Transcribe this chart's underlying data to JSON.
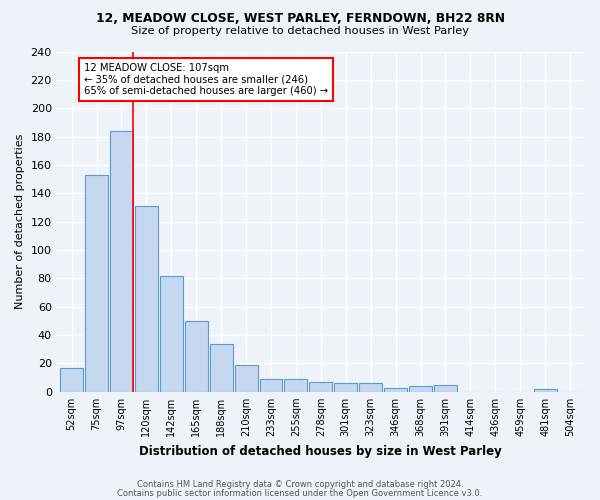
{
  "title1": "12, MEADOW CLOSE, WEST PARLEY, FERNDOWN, BH22 8RN",
  "title2": "Size of property relative to detached houses in West Parley",
  "xlabel": "Distribution of detached houses by size in West Parley",
  "ylabel": "Number of detached properties",
  "categories": [
    "52sqm",
    "75sqm",
    "97sqm",
    "120sqm",
    "142sqm",
    "165sqm",
    "188sqm",
    "210sqm",
    "233sqm",
    "255sqm",
    "278sqm",
    "301sqm",
    "323sqm",
    "346sqm",
    "368sqm",
    "391sqm",
    "414sqm",
    "436sqm",
    "459sqm",
    "481sqm",
    "504sqm"
  ],
  "values": [
    17,
    153,
    184,
    131,
    82,
    50,
    34,
    19,
    9,
    9,
    7,
    6,
    6,
    3,
    4,
    5,
    0,
    0,
    0,
    2,
    0
  ],
  "bar_color": "#c5d8f0",
  "bar_edge_color": "#5b9bd5",
  "bar_edge_width": 0.8,
  "subject_bin_index": 2,
  "annotation_title": "12 MEADOW CLOSE: 107sqm",
  "annotation_line1": "← 35% of detached houses are smaller (246)",
  "annotation_line2": "65% of semi-detached houses are larger (460) →",
  "annotation_box_color": "white",
  "annotation_box_edge_color": "red",
  "subject_line_color": "red",
  "ylim": [
    0,
    240
  ],
  "yticks": [
    0,
    20,
    40,
    60,
    80,
    100,
    120,
    140,
    160,
    180,
    200,
    220,
    240
  ],
  "footer1": "Contains HM Land Registry data © Crown copyright and database right 2024.",
  "footer2": "Contains public sector information licensed under the Open Government Licence v3.0.",
  "bg_color": "#eef3fa",
  "grid_color": "white"
}
